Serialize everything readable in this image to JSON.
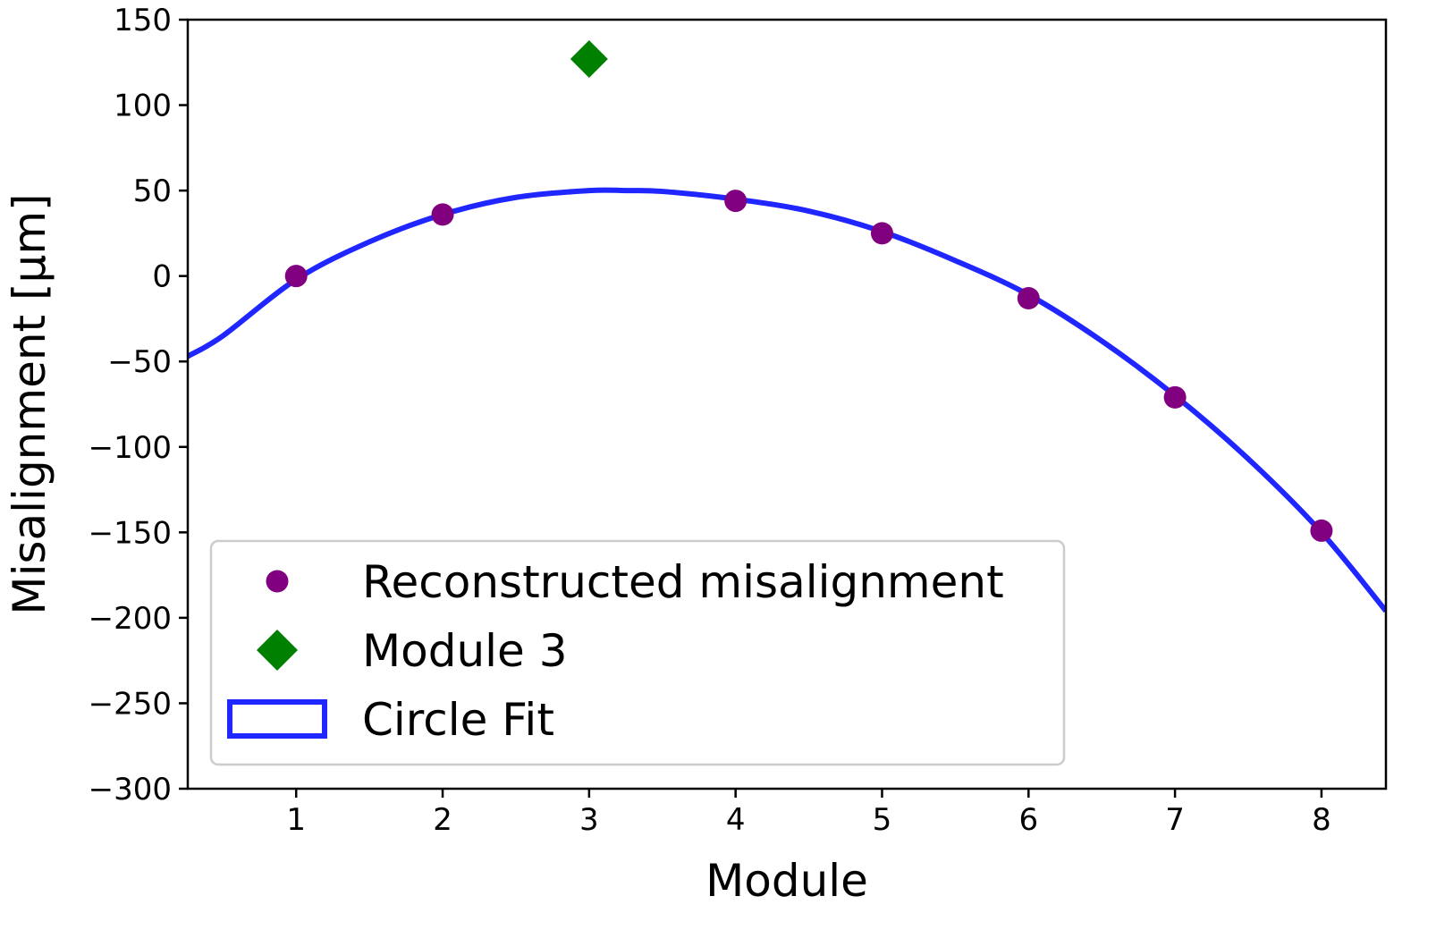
{
  "chart_data": {
    "type": "scatter",
    "xlabel": "Module",
    "ylabel": "Misalignment [µm]",
    "xlim": [
      0.26,
      8.44
    ],
    "ylim": [
      -300,
      150
    ],
    "xticks": [
      1,
      2,
      3,
      4,
      5,
      6,
      7,
      8
    ],
    "yticks": [
      -300,
      -250,
      -200,
      -150,
      -100,
      -50,
      0,
      50,
      100,
      150
    ],
    "ytick_labels": [
      "−300",
      "−250",
      "−200",
      "−150",
      "−100",
      "−50",
      "0",
      "50",
      "100",
      "150"
    ],
    "grid": false,
    "legend_position": "lower-left",
    "series": [
      {
        "name": "Reconstructed misalignment",
        "kind": "points",
        "marker": "circle",
        "color": "#800080",
        "x": [
          1,
          2,
          4,
          5,
          6,
          7,
          8
        ],
        "y": [
          0,
          36,
          44,
          25,
          -13,
          -71,
          -149
        ]
      },
      {
        "name": "Module 3",
        "kind": "points",
        "marker": "diamond",
        "color": "#008000",
        "x": [
          3
        ],
        "y": [
          127
        ]
      },
      {
        "name": "Circle Fit",
        "kind": "curve",
        "color": "#1f26ff",
        "x": [
          0.26,
          0.5,
          1.0,
          1.5,
          2.0,
          2.5,
          3.0,
          3.25,
          3.5,
          4.0,
          4.5,
          5.0,
          5.5,
          6.0,
          6.5,
          7.0,
          7.5,
          8.0,
          8.44
        ],
        "y": [
          -47,
          -35,
          -2,
          20,
          36,
          46,
          50,
          50,
          49.5,
          45,
          38,
          26,
          9,
          -11,
          -38,
          -70,
          -107,
          -150,
          -196
        ]
      }
    ]
  }
}
